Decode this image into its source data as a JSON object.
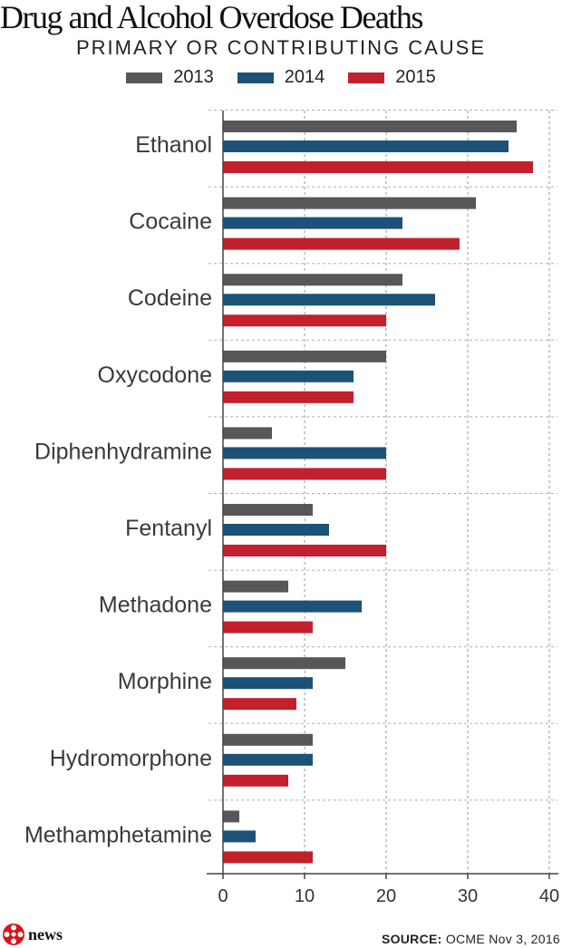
{
  "chart_data": {
    "type": "bar",
    "orientation": "horizontal",
    "title": "Drug and Alcohol Overdose Deaths",
    "subtitle": "PRIMARY OR CONTRIBUTING CAUSE",
    "categories": [
      "Ethanol",
      "Cocaine",
      "Codeine",
      "Oxycodone",
      "Diphenhydramine",
      "Fentanyl",
      "Methadone",
      "Morphine",
      "Hydromorphone",
      "Methamphetamine"
    ],
    "series": [
      {
        "name": "2013",
        "color": "#575757",
        "values": [
          36,
          31,
          22,
          20,
          6,
          11,
          8,
          15,
          11,
          2
        ]
      },
      {
        "name": "2014",
        "color": "#1d5278",
        "values": [
          35,
          22,
          26,
          16,
          20,
          13,
          17,
          11,
          11,
          4
        ]
      },
      {
        "name": "2015",
        "color": "#c3202e",
        "values": [
          38,
          29,
          20,
          16,
          20,
          20,
          11,
          9,
          8,
          11
        ]
      }
    ],
    "xlim": [
      0,
      40
    ],
    "xticks": [
      0,
      10,
      20,
      30,
      40
    ],
    "grid": "vertical dashed",
    "legend_position": "top-center"
  },
  "footer": {
    "logo_text": "news",
    "source_label": "SOURCE:",
    "source_text": "OCME Nov 3, 2016"
  }
}
